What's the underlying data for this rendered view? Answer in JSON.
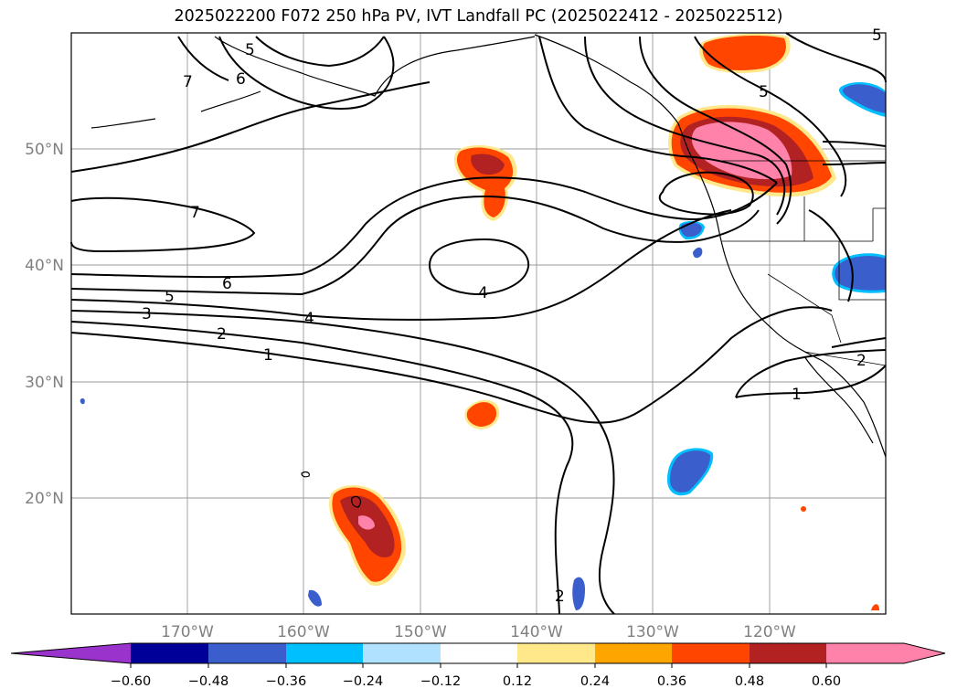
{
  "title": "2025022200 F072 250 hPa PV, IVT Landfall PC (2025022412 - 2025022512)",
  "colors": {
    "neg_060": "#9933cc",
    "neg_048": "#000099",
    "neg_036": "#3a5fcd",
    "neg_024": "#00bfff",
    "neg_012": "#b0e2ff",
    "neutral": "#ffffff",
    "pos_012": "#ffe88a",
    "pos_024": "#ffa500",
    "pos_036": "#ff4500",
    "pos_048": "#b22222",
    "pos_060": "#ff82ab",
    "contour": "#000000",
    "grid": "#999999"
  },
  "map": {
    "lat_labels": [
      "50°N",
      "40°N",
      "30°N",
      "20°N"
    ],
    "lon_labels": [
      "170°W",
      "160°W",
      "150°W",
      "140°W",
      "130°W",
      "120°W"
    ],
    "lon_range": [
      180,
      110
    ],
    "lat_range": [
      10,
      60
    ]
  },
  "pv_contours": {
    "labels": [
      "5",
      "6",
      "7",
      "7",
      "6",
      "5",
      "4",
      "3",
      "2",
      "1",
      "4",
      "5",
      "1",
      "2",
      "2",
      "5"
    ]
  },
  "colorbar": {
    "ticks": [
      "−0.60",
      "−0.48",
      "−0.36",
      "−0.24",
      "−0.12",
      "0.12",
      "0.24",
      "0.36",
      "0.48",
      "0.60"
    ],
    "extend": "both"
  }
}
